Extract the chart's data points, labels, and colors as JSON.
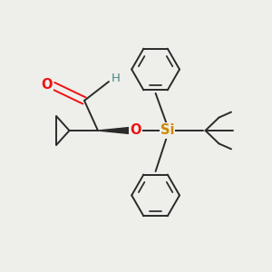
{
  "background_color": "#eeeeea",
  "bond_color": "#2a2a2a",
  "o_color": "#ee1111",
  "si_color": "#cc8800",
  "h_color": "#4a8888",
  "figsize": [
    3.0,
    3.0
  ],
  "dpi": 100,
  "xlim": [
    0,
    10
  ],
  "ylim": [
    0,
    10
  ]
}
